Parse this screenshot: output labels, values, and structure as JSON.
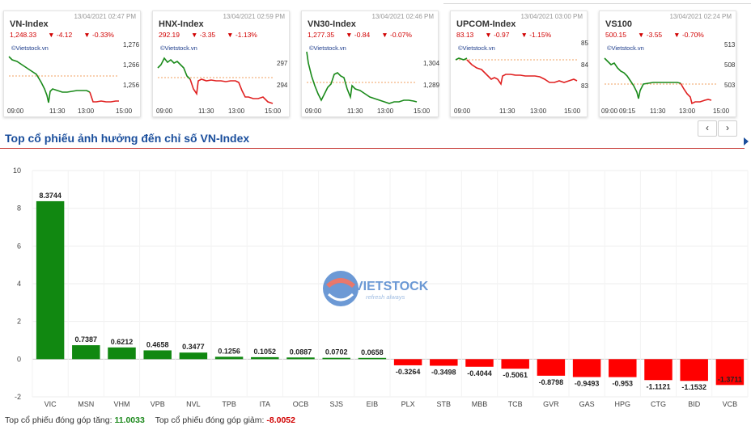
{
  "cards": [
    {
      "name": "VN-Index",
      "date": "13/04/2021 02:47 PM",
      "value": "1,248.33",
      "change": "-4.12",
      "pct": "-0.33%",
      "brand": "©Vietstock.vn",
      "yticks": [
        "1,276",
        "1,266",
        "1,256"
      ],
      "xticks": [
        "09:00",
        "11:30",
        "13:00",
        "15:00"
      ]
    },
    {
      "name": "HNX-Index",
      "date": "13/04/2021 02:59 PM",
      "value": "292.19",
      "change": "-3.35",
      "pct": "-1.13%",
      "brand": "©Vietstock.vn",
      "yticks": [
        "297",
        "294"
      ],
      "xticks": [
        "09:00",
        "11:30",
        "13:00",
        "15:00"
      ]
    },
    {
      "name": "VN30-Index",
      "date": "13/04/2021 02:46 PM",
      "value": "1,277.35",
      "change": "-0.84",
      "pct": "-0.07%",
      "brand": "©Vietstock.vn",
      "yticks": [
        "1,304",
        "1,289"
      ],
      "xticks": [
        "09:00",
        "11:30",
        "13:00",
        "15:00"
      ]
    },
    {
      "name": "UPCOM-Index",
      "date": "13/04/2021 03:00 PM",
      "value": "83.13",
      "change": "-0.97",
      "pct": "-1.15%",
      "brand": "©Vietstock.vn",
      "yticks": [
        "85",
        "84",
        "83"
      ],
      "xticks": [
        "09:00",
        "11:30",
        "13:00",
        "15:00"
      ]
    },
    {
      "name": "VS100",
      "date": "13/04/2021 02:24 PM",
      "value": "500.15",
      "change": "-3.55",
      "pct": "-0.70%",
      "brand": "©Vietstock.vn",
      "yticks": [
        "513",
        "508",
        "503"
      ],
      "xticks": [
        "09:00",
        "09:15",
        "11:30",
        "13:00",
        "15:00"
      ]
    }
  ],
  "nav": {
    "prev": "‹",
    "next": "›"
  },
  "section_title": "Top cổ phiếu ảnh hưởng đến chỉ số VN-Index",
  "watermark": {
    "brand": "VIETSTOCK",
    "tagline": "refresh always"
  },
  "chart_data": {
    "type": "bar",
    "categories": [
      "VIC",
      "MSN",
      "VHM",
      "VPB",
      "NVL",
      "TPB",
      "ITA",
      "OCB",
      "SJS",
      "EIB",
      "PLX",
      "STB",
      "MBB",
      "TCB",
      "GVR",
      "GAS",
      "HPG",
      "CTG",
      "BID",
      "VCB"
    ],
    "values": [
      8.3744,
      0.7387,
      0.6212,
      0.4658,
      0.3477,
      0.1256,
      0.1052,
      0.0887,
      0.0702,
      0.0658,
      -0.3264,
      -0.3498,
      -0.4044,
      -0.5061,
      -0.8798,
      -0.9493,
      -0.953,
      -1.1121,
      -1.1532,
      -1.3711
    ],
    "labels": [
      "8.3744",
      "0.7387",
      "0.6212",
      "0.4658",
      "0.3477",
      "0.1256",
      "0.1052",
      "0.0887",
      "0.0702",
      "0.0658",
      "-0.3264",
      "-0.3498",
      "-0.4044",
      "-0.5061",
      "-0.8798",
      "-0.9493",
      "-0.953",
      "-1.1121",
      "-1.1532",
      "-1.3711"
    ],
    "ylim": [
      -2,
      10
    ],
    "yticks": [
      -2,
      0,
      2,
      4,
      6,
      8,
      10
    ],
    "grid": true,
    "colors": {
      "positive": "#118811",
      "negative": "#ff0000"
    }
  },
  "footer": {
    "up_label": "Top cổ phiếu đóng góp tăng:",
    "up_value": "11.0033",
    "down_label": "Top cổ phiếu đóng góp giảm:",
    "down_value": "-8.0052"
  }
}
